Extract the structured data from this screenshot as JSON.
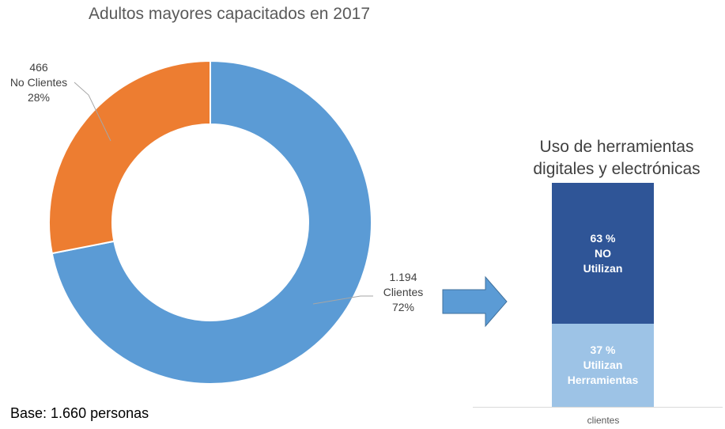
{
  "chart_data": [
    {
      "type": "pie",
      "title": "Adultos mayores capacitados en 2017",
      "slices": [
        {
          "label": "Clientes",
          "count": "1.194",
          "percent": "72%",
          "value": 1194,
          "color": "#5b9bd5"
        },
        {
          "label": "No Clientes",
          "count": "466",
          "percent": "28%",
          "value": 466,
          "color": "#ed7d31"
        }
      ],
      "note": "Base: 1.660 personas"
    },
    {
      "type": "bar",
      "title_lines": [
        "Uso de herramientas",
        "digitales y electrónicas"
      ],
      "categories": [
        "clientes"
      ],
      "series": [
        {
          "value": 63,
          "label_lines": [
            "63 %",
            "NO",
            "Utilizan"
          ],
          "color": "#2f5597"
        },
        {
          "value": 37,
          "label_lines": [
            "37 %",
            "Utilizan",
            "Herramientas"
          ],
          "color": "#9dc3e6"
        }
      ]
    }
  ],
  "arrow": {
    "color": "#5b9bd5"
  }
}
